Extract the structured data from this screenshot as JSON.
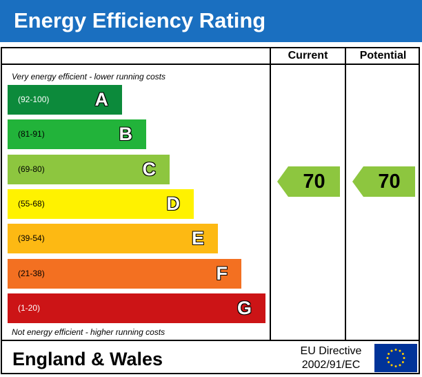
{
  "title": "Energy Efficiency Rating",
  "columns": {
    "current": "Current",
    "potential": "Potential"
  },
  "notes": {
    "top": "Very energy efficient - lower running costs",
    "bottom": "Not energy efficient - higher running costs"
  },
  "footer": {
    "region": "England & Wales",
    "directive_line1": "EU Directive",
    "directive_line2": "2002/91/EC"
  },
  "colors": {
    "header": "#1a6fc0",
    "A": "#0c8a3b",
    "B": "#22b33a",
    "C": "#8dc63f",
    "D": "#fff200",
    "E": "#fdb913",
    "F": "#f37021",
    "G": "#cc1416",
    "pointer": "#8dc63f",
    "eu_flag": "#003399",
    "eu_stars": "#ffcc00"
  },
  "chart_data": {
    "type": "bar",
    "categories": [
      "A",
      "B",
      "C",
      "D",
      "E",
      "F",
      "G"
    ],
    "ranges": [
      "(92-100)",
      "(81-91)",
      "(69-80)",
      "(55-68)",
      "(39-54)",
      "(21-38)",
      "(1-20)"
    ],
    "scale_max": 7,
    "values": [
      1,
      2,
      3,
      4,
      5,
      6,
      7
    ],
    "ratings": {
      "current": 70,
      "potential": 70
    },
    "current_band": "C",
    "potential_band": "C"
  }
}
